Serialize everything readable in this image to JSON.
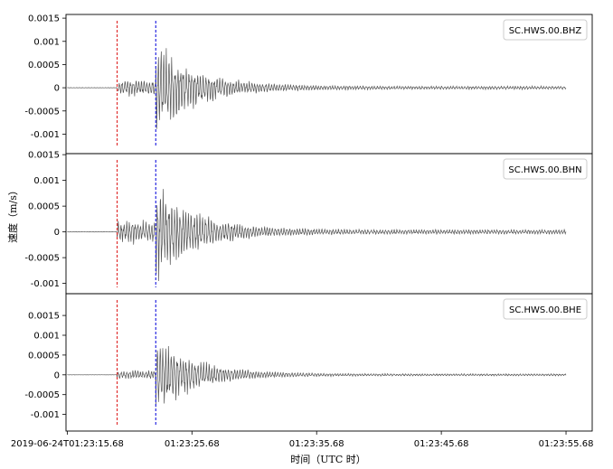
{
  "chart_data": {
    "type": "line",
    "ylabel": "速度（m/s）",
    "xlabel": "时间（UTC 时）",
    "x_axis": {
      "ticks": [
        0,
        10,
        20,
        30,
        40
      ],
      "tick_labels": [
        "2019-06-24T01:23:15.68",
        "01:23:25.68",
        "01:23:35.68",
        "01:23:45.68",
        "01:23:55.68"
      ],
      "range": [
        -0.1,
        42.1
      ]
    },
    "markers": {
      "p_arrival_s": 4.0,
      "s_arrival_s": 7.1,
      "p_color": "#e03030",
      "s_color": "#2a2ae0"
    },
    "trace_color": "#555555",
    "panels": [
      {
        "name": "SC.HWS.00.BHZ",
        "ylim": [
          -0.00142,
          0.00158
        ],
        "yticks": [
          -0.001,
          -0.0005,
          0,
          0.0005,
          0.001,
          0.0015
        ],
        "ytick_labels": [
          "-0.001",
          "-0.0005",
          "0",
          "0.0005",
          "0.001",
          "0.0015"
        ],
        "pre_event_amp": 3e-05,
        "p_amp": 0.00022,
        "s_amp": 0.00115,
        "coda_amp": 4e-05,
        "seed": 11
      },
      {
        "name": "SC.HWS.00.BHN",
        "ylim": [
          -0.0012,
          0.00152
        ],
        "yticks": [
          -0.001,
          -0.0005,
          0,
          0.0005,
          0.001,
          0.0015
        ],
        "ytick_labels": [
          "-0.001",
          "-0.0005",
          "0",
          "0.0005",
          "0.001",
          "0.0015"
        ],
        "pre_event_amp": 3e-05,
        "p_amp": 0.00028,
        "s_amp": 0.00108,
        "coda_amp": 5e-05,
        "seed": 23
      },
      {
        "name": "SC.HWS.00.BHE",
        "ylim": [
          -0.00142,
          0.00205
        ],
        "yticks": [
          -0.001,
          -0.0005,
          0,
          0.0005,
          0.001,
          0.0015
        ],
        "ytick_labels": [
          "-0.001",
          "-0.0005",
          "0",
          "0.0005",
          "0.001",
          "0.0015"
        ],
        "pre_event_amp": 2e-05,
        "p_amp": 0.00014,
        "s_amp": 0.00112,
        "coda_amp": 3e-05,
        "seed": 37
      }
    ]
  }
}
